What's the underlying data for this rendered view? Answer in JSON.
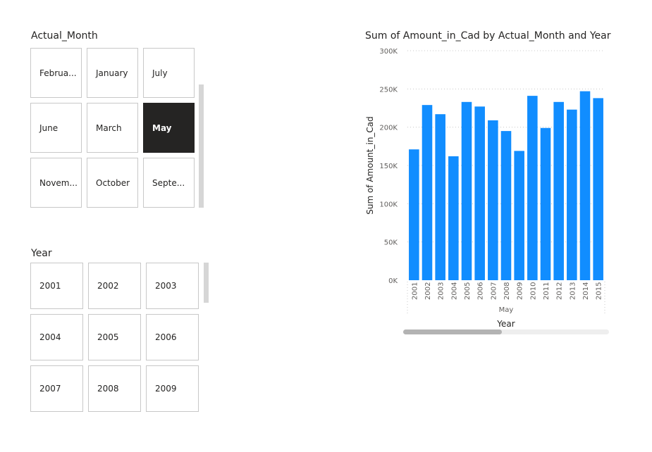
{
  "month_slicer": {
    "title": "Actual_Month",
    "items": [
      {
        "label": "Februa...",
        "selected": false
      },
      {
        "label": "January",
        "selected": false
      },
      {
        "label": "July",
        "selected": false
      },
      {
        "label": "June",
        "selected": false
      },
      {
        "label": "March",
        "selected": false
      },
      {
        "label": "May",
        "selected": true
      },
      {
        "label": "Novem...",
        "selected": false
      },
      {
        "label": "October",
        "selected": false
      },
      {
        "label": "Septe...",
        "selected": false
      }
    ]
  },
  "year_slicer": {
    "title": "Year",
    "items": [
      {
        "label": "2001"
      },
      {
        "label": "2002"
      },
      {
        "label": "2003"
      },
      {
        "label": "2004"
      },
      {
        "label": "2005"
      },
      {
        "label": "2006"
      },
      {
        "label": "2007"
      },
      {
        "label": "2008"
      },
      {
        "label": "2009"
      }
    ]
  },
  "chart_data": {
    "type": "bar",
    "title": "Sum of Amount_in_Cad by Actual_Month and Year",
    "ylabel": "Sum of Amount_in_Cad",
    "xlabel": "Year",
    "group_label": "May",
    "categories": [
      "2001",
      "2002",
      "2003",
      "2004",
      "2005",
      "2006",
      "2007",
      "2008",
      "2009",
      "2010",
      "2011",
      "2012",
      "2013",
      "2014",
      "2015"
    ],
    "values": [
      171000,
      229000,
      217000,
      162000,
      233000,
      227000,
      209000,
      195000,
      169000,
      241000,
      199000,
      233000,
      223000,
      247000,
      238000
    ],
    "ylim": [
      0,
      300000
    ],
    "yticks": [
      0,
      50000,
      100000,
      150000,
      200000,
      250000,
      300000
    ],
    "ytick_labels": [
      "0K",
      "50K",
      "100K",
      "150K",
      "200K",
      "250K",
      "300K"
    ],
    "grid": true,
    "bar_color": "#118dff"
  }
}
